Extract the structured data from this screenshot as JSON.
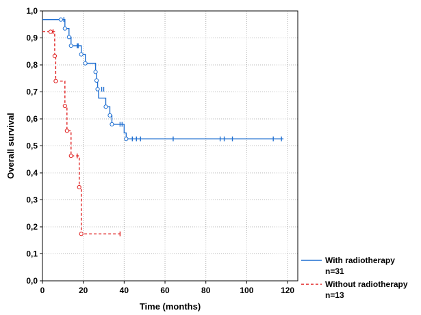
{
  "chart_data": {
    "type": "line",
    "subtype": "kaplan-meier",
    "title": "",
    "xlabel": "Time (months)",
    "ylabel": "Overall survival",
    "xlim": [
      0,
      125
    ],
    "ylim": [
      0,
      1.0
    ],
    "xticks": [
      0,
      20,
      40,
      60,
      80,
      100,
      120
    ],
    "yticks": [
      0.0,
      0.1,
      0.2,
      0.3,
      0.4,
      0.5,
      0.6,
      0.7,
      0.8,
      0.9,
      1.0
    ],
    "ytick_labels": [
      "0,0",
      "0,1",
      "0,2",
      "0,3",
      "0,4",
      "0,5",
      "0,6",
      "0,7",
      "0,8",
      "0,9",
      "1,0"
    ],
    "grid": true,
    "legend_position": "bottom-right outside",
    "series": [
      {
        "name": "With radiotherapy",
        "legend_lines": [
          "With radiotherapy",
          "n=31"
        ],
        "color": "#1f6fd1",
        "line_style": "solid",
        "steps": [
          [
            0,
            0.968
          ],
          [
            11,
            0.935
          ],
          [
            13,
            0.903
          ],
          [
            14,
            0.871
          ],
          [
            19,
            0.839
          ],
          [
            21,
            0.806
          ],
          [
            26,
            0.774
          ],
          [
            26.5,
            0.742
          ],
          [
            27,
            0.71
          ],
          [
            27.5,
            0.677
          ],
          [
            31,
            0.645
          ],
          [
            33,
            0.613
          ],
          [
            34,
            0.58
          ],
          [
            40,
            0.548
          ],
          [
            41,
            0.526
          ]
        ],
        "end_x": 118,
        "events": [
          [
            9,
            0.968
          ],
          [
            11,
            0.935
          ],
          [
            13,
            0.903
          ],
          [
            14,
            0.871
          ],
          [
            19,
            0.839
          ],
          [
            21,
            0.806
          ],
          [
            26,
            0.774
          ],
          [
            26.5,
            0.742
          ],
          [
            27,
            0.71
          ],
          [
            31,
            0.645
          ],
          [
            33,
            0.613
          ],
          [
            34,
            0.58
          ],
          [
            41,
            0.526
          ]
        ],
        "censored": [
          [
            10.5,
            0.968
          ],
          [
            17,
            0.871
          ],
          [
            17.5,
            0.871
          ],
          [
            29,
            0.71
          ],
          [
            30,
            0.71
          ],
          [
            38,
            0.58
          ],
          [
            39,
            0.58
          ],
          [
            44,
            0.526
          ],
          [
            46,
            0.526
          ],
          [
            48,
            0.526
          ],
          [
            64,
            0.526
          ],
          [
            87,
            0.526
          ],
          [
            89,
            0.526
          ],
          [
            93,
            0.526
          ],
          [
            113,
            0.526
          ],
          [
            117,
            0.526
          ]
        ]
      },
      {
        "name": "Without radiotherapy",
        "legend_lines": [
          "Without radiotherapy",
          "n=13"
        ],
        "color": "#e02020",
        "line_style": "dashed",
        "steps": [
          [
            0,
            0.923
          ],
          [
            6,
            0.833
          ],
          [
            6.5,
            0.74
          ],
          [
            11,
            0.648
          ],
          [
            12,
            0.556
          ],
          [
            14,
            0.463
          ],
          [
            18,
            0.347
          ],
          [
            19,
            0.174
          ]
        ],
        "end_x": 38,
        "events": [
          [
            4,
            0.923
          ],
          [
            6,
            0.833
          ],
          [
            6.5,
            0.74
          ],
          [
            11,
            0.648
          ],
          [
            12,
            0.556
          ],
          [
            14,
            0.463
          ],
          [
            18,
            0.347
          ],
          [
            19,
            0.174
          ]
        ],
        "censored": [
          [
            5.2,
            0.923
          ],
          [
            17,
            0.463
          ],
          [
            38,
            0.174
          ]
        ]
      }
    ]
  }
}
